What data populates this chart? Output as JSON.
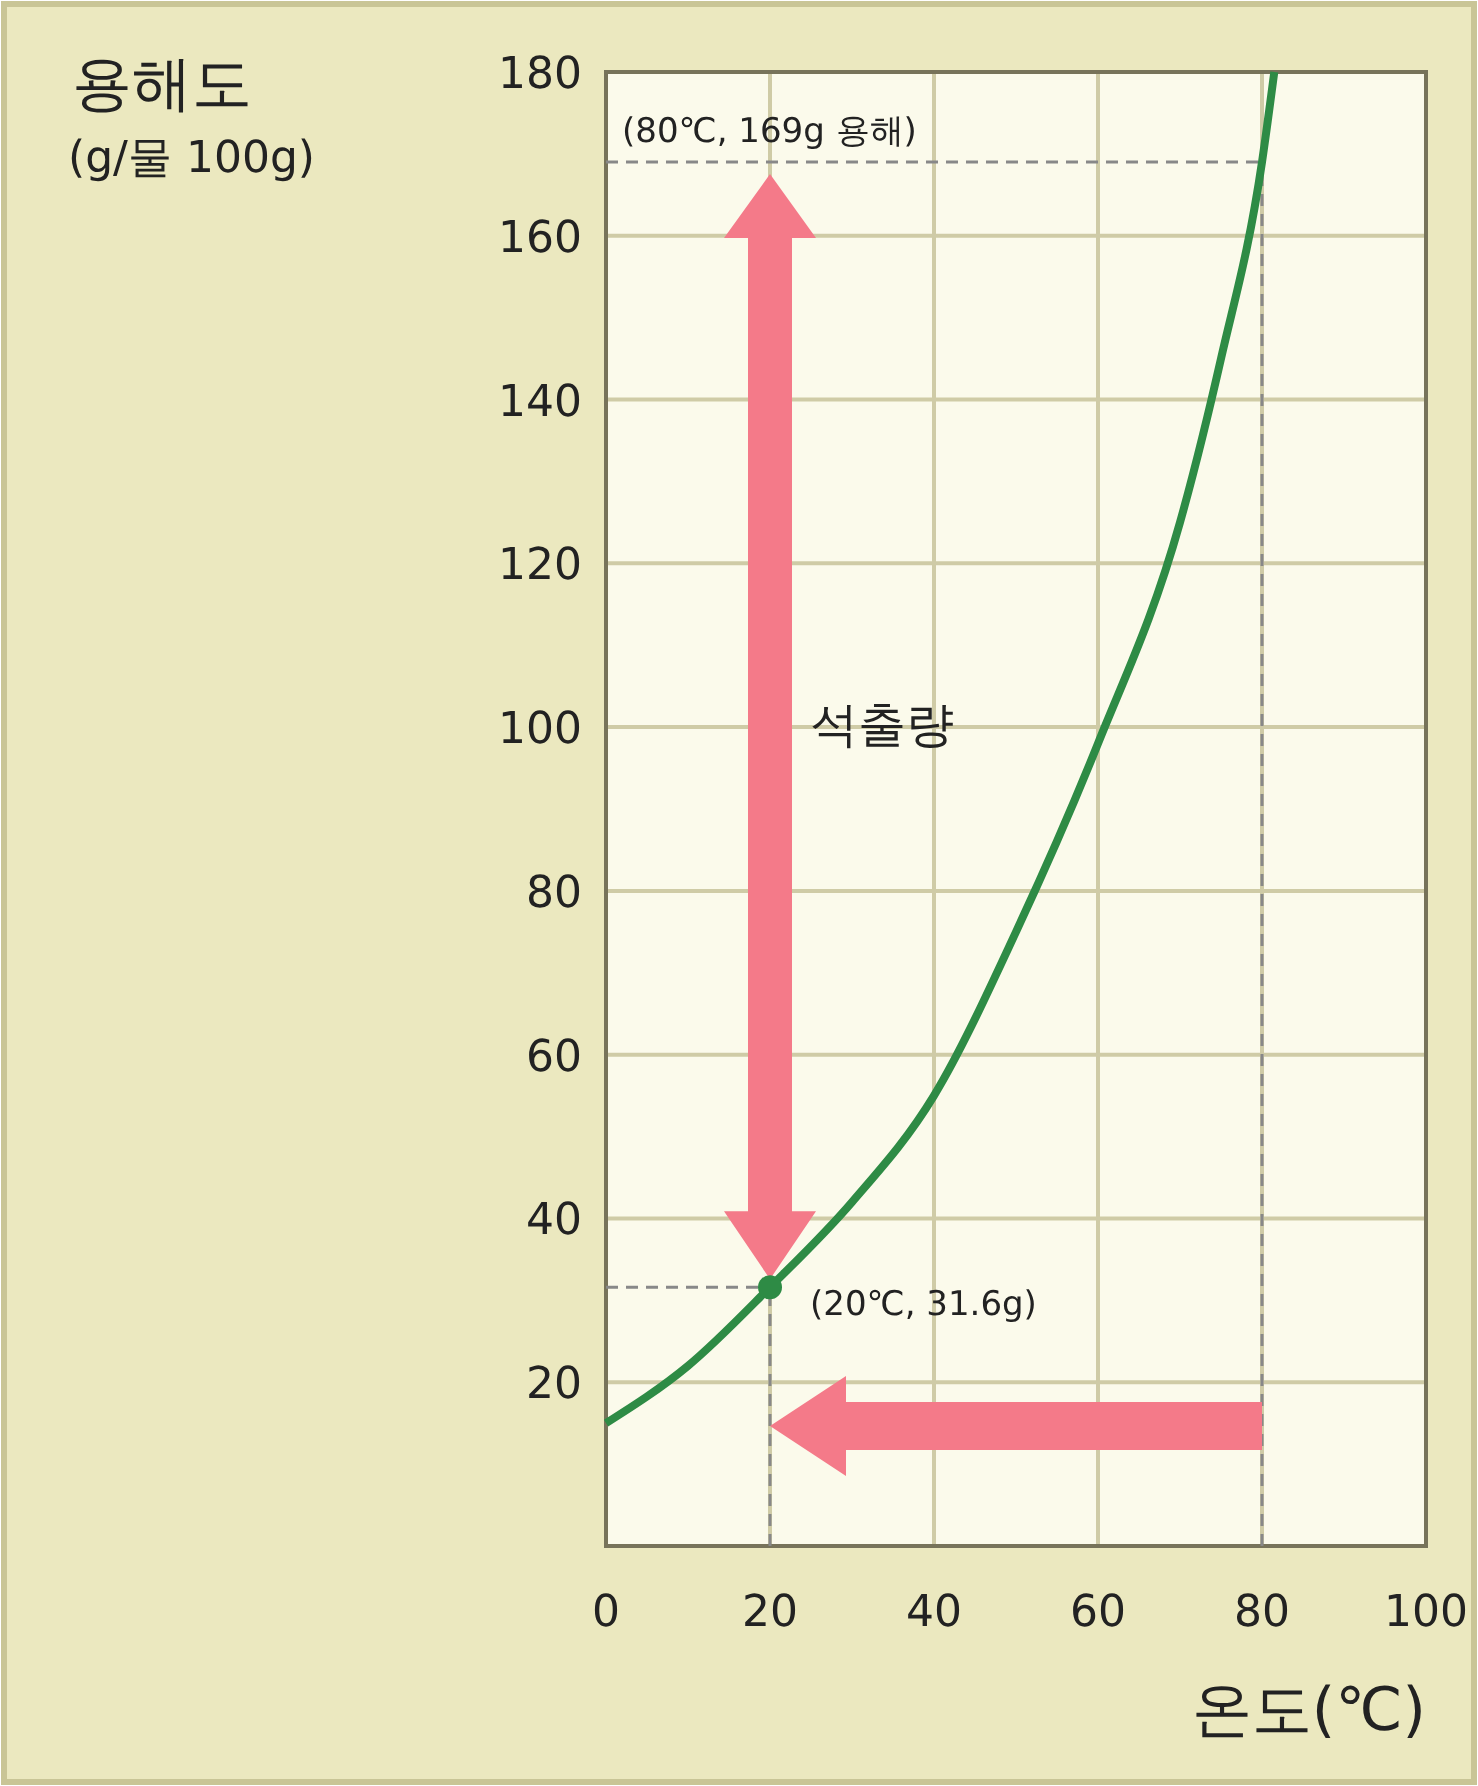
{
  "chart_data": {
    "type": "line",
    "xlabel": "온도(℃)",
    "ylabel": "용해도\n(g/물 100g)",
    "xlim": [
      0,
      100
    ],
    "xticks": [
      0,
      20,
      40,
      60,
      80,
      100
    ],
    "ylim": [
      0,
      180
    ],
    "yticks": [
      20,
      40,
      60,
      80,
      100,
      120,
      140,
      160,
      180
    ],
    "grid": true,
    "series": [
      {
        "type": "line",
        "color": "#2e8b45",
        "x": [
          0,
          10,
          20,
          30,
          40,
          50,
          60,
          70,
          75,
          80,
          81.5
        ],
        "values": [
          15,
          22,
          31.6,
          42,
          55,
          75,
          98,
          125,
          145,
          169,
          180
        ]
      },
      {
        "type": "scatter",
        "color": "#2e8b45",
        "marker": "circle",
        "x": [
          20
        ],
        "values": [
          31.6
        ]
      }
    ],
    "ref_lines": [
      {
        "axis": "y",
        "value": 169,
        "color": "#888888",
        "line_style": "dashed"
      },
      {
        "axis": "x",
        "value": 80,
        "color": "#888888",
        "line_style": "dashed"
      },
      {
        "axis": "y",
        "value": 31.6,
        "color": "#888888",
        "line_style": "dashed"
      },
      {
        "axis": "x",
        "value": 20,
        "color": "#888888",
        "line_style": "dashed"
      }
    ],
    "annotations": [
      "(80℃, 169g 용해)",
      {
        "text": "(20℃, 31.6g)",
        "x": 20,
        "y": 31.6
      },
      "석출량"
    ]
  }
}
